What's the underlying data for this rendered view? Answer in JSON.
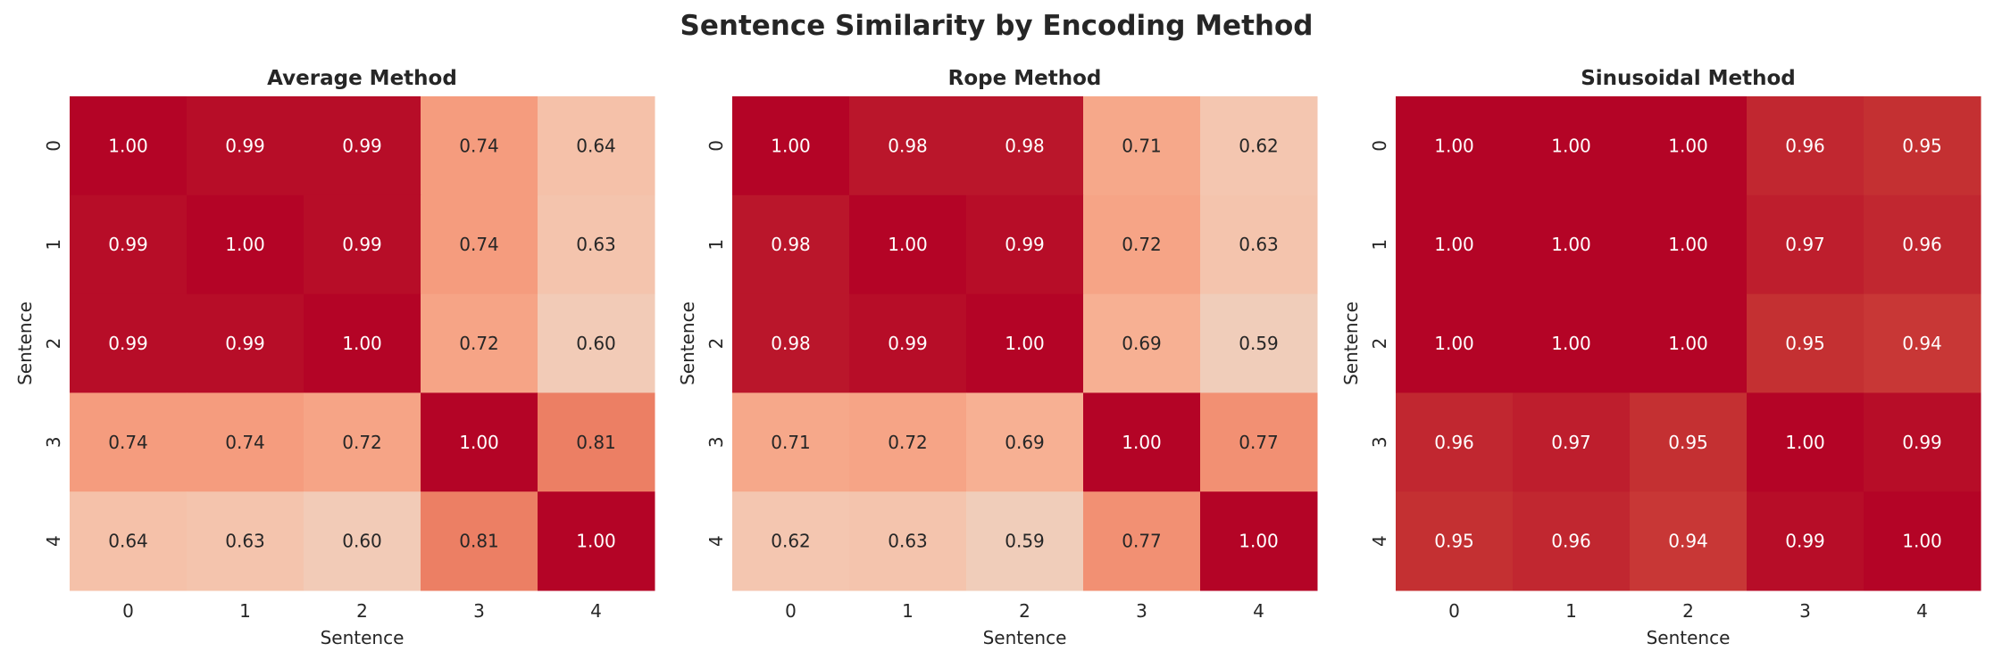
{
  "chart_data": {
    "type": "heatmap",
    "title": "Sentence Similarity by Encoding Method",
    "colormap": "coolwarm",
    "vmin": 0,
    "vmax": 1,
    "panels": [
      {
        "title": "Average Method",
        "xlabel": "Sentence",
        "ylabel": "Sentence",
        "x_ticks": [
          "0",
          "1",
          "2",
          "3",
          "4"
        ],
        "y_ticks": [
          "0",
          "1",
          "2",
          "3",
          "4"
        ],
        "values": [
          [
            1.0,
            0.99,
            0.99,
            0.74,
            0.64
          ],
          [
            0.99,
            1.0,
            0.99,
            0.74,
            0.63
          ],
          [
            0.99,
            0.99,
            1.0,
            0.72,
            0.6
          ],
          [
            0.74,
            0.74,
            0.72,
            1.0,
            0.81
          ],
          [
            0.64,
            0.63,
            0.6,
            0.81,
            1.0
          ]
        ]
      },
      {
        "title": "Rope Method",
        "xlabel": "Sentence",
        "ylabel": "Sentence",
        "x_ticks": [
          "0",
          "1",
          "2",
          "3",
          "4"
        ],
        "y_ticks": [
          "0",
          "1",
          "2",
          "3",
          "4"
        ],
        "values": [
          [
            1.0,
            0.98,
            0.98,
            0.71,
            0.62
          ],
          [
            0.98,
            1.0,
            0.99,
            0.72,
            0.63
          ],
          [
            0.98,
            0.99,
            1.0,
            0.69,
            0.59
          ],
          [
            0.71,
            0.72,
            0.69,
            1.0,
            0.77
          ],
          [
            0.62,
            0.63,
            0.59,
            0.77,
            1.0
          ]
        ]
      },
      {
        "title": "Sinusoidal Method",
        "xlabel": "Sentence",
        "ylabel": "Sentence",
        "x_ticks": [
          "0",
          "1",
          "2",
          "3",
          "4"
        ],
        "y_ticks": [
          "0",
          "1",
          "2",
          "3",
          "4"
        ],
        "values": [
          [
            1.0,
            1.0,
            1.0,
            0.96,
            0.95
          ],
          [
            1.0,
            1.0,
            1.0,
            0.97,
            0.96
          ],
          [
            1.0,
            1.0,
            1.0,
            0.95,
            0.94
          ],
          [
            0.96,
            0.97,
            0.95,
            1.0,
            0.99
          ],
          [
            0.95,
            0.96,
            0.94,
            0.99,
            1.0
          ]
        ]
      }
    ]
  }
}
